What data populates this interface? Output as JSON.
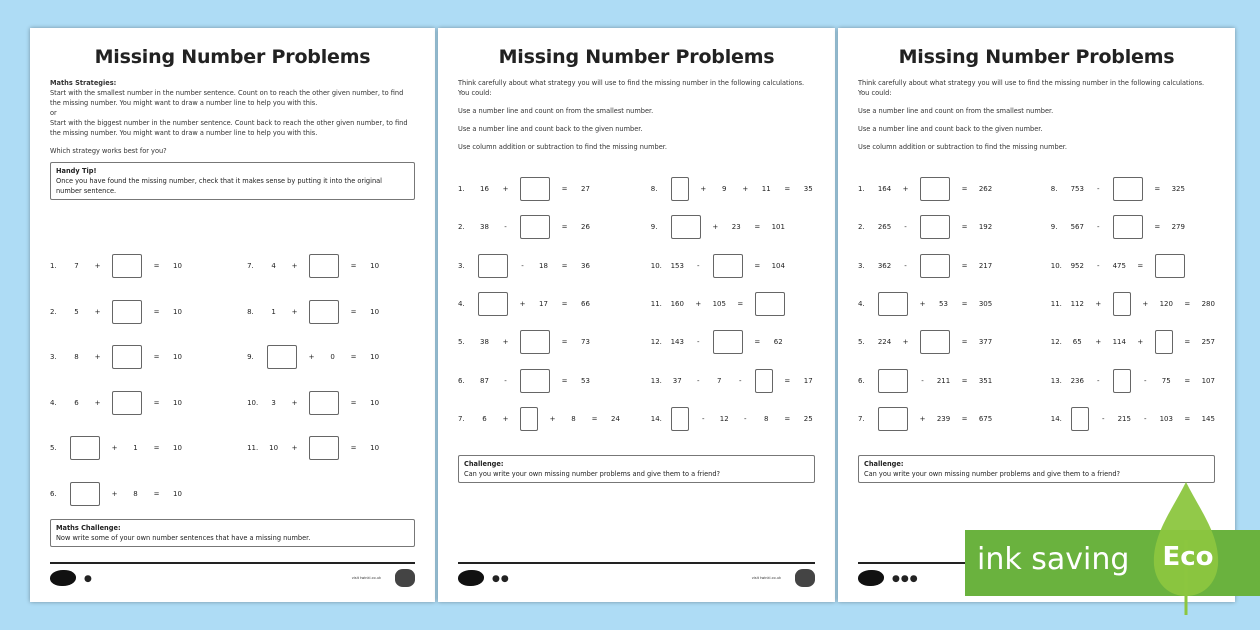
{
  "pages": [
    {
      "title": "Missing Number Problems",
      "strategies_heading": "Maths Strategies:",
      "strategy1": "Start with the smallest number in the number sentence. Count on to reach the other given number, to find the missing number. You might want to draw a number line to help you with this.",
      "or": "or",
      "strategy2": "Start with the biggest number in the number sentence. Count back to reach the other given number, to find the missing number. You might want to draw a number line to help you with this.",
      "question": "Which strategy works best for you?",
      "tip_heading": "Handy Tip!",
      "tip": "Once you have found the missing number, check that it makes sense by putting it into the original number sentence.",
      "problems": [
        [
          "1.",
          "7",
          "+",
          "[]",
          "=",
          "10"
        ],
        [
          "2.",
          "5",
          "+",
          "[]",
          "=",
          "10"
        ],
        [
          "3.",
          "8",
          "+",
          "[]",
          "=",
          "10"
        ],
        [
          "4.",
          "6",
          "+",
          "[]",
          "=",
          "10"
        ],
        [
          "5.",
          "[]",
          "+",
          "1",
          "=",
          "10"
        ],
        [
          "6.",
          "[]",
          "+",
          "8",
          "=",
          "10"
        ],
        [
          "7.",
          "4",
          "+",
          "[]",
          "=",
          "10"
        ],
        [
          "8.",
          "1",
          "+",
          "[]",
          "=",
          "10"
        ],
        [
          "9.",
          "[]",
          "+",
          "0",
          "=",
          "10"
        ],
        [
          "10.",
          "3",
          "+",
          "[]",
          "=",
          "10"
        ],
        [
          "11.",
          "10",
          "+",
          "[]",
          "=",
          "10"
        ]
      ],
      "challenge_heading": "Maths Challenge:",
      "challenge": "Now write some of your own number sentences that have a missing number.",
      "page_dots": "●",
      "footer_text": "visit twinkl.co.uk"
    },
    {
      "title": "Missing Number Problems",
      "intro": "Think carefully about what strategy you will use to find the missing number in the following calculations. You could:",
      "tips": [
        "Use a number line and count on from the smallest number.",
        "Use a number line and count back to the given number.",
        "Use column addition or subtraction to find the missing number."
      ],
      "problems": [
        [
          "1.",
          "16",
          "+",
          "[]",
          "=",
          "27"
        ],
        [
          "2.",
          "38",
          "-",
          "[]",
          "=",
          "26"
        ],
        [
          "3.",
          "[]",
          "-",
          "18",
          "=",
          "36"
        ],
        [
          "4.",
          "[]",
          "+",
          "17",
          "=",
          "66"
        ],
        [
          "5.",
          "38",
          "+",
          "[]",
          "=",
          "73"
        ],
        [
          "6.",
          "87",
          "-",
          "[]",
          "=",
          "53"
        ],
        [
          "7.",
          "6",
          "+",
          "[s]",
          "+",
          "8",
          "=",
          "24"
        ],
        [
          "8.",
          "[s]",
          "+",
          "9",
          "+",
          "11",
          "=",
          "35"
        ],
        [
          "9.",
          "[]",
          "+",
          "23",
          "=",
          "101"
        ],
        [
          "10.",
          "153",
          "-",
          "[]",
          "=",
          "104"
        ],
        [
          "11.",
          "160",
          "+",
          "105",
          "=",
          "[]"
        ],
        [
          "12.",
          "143",
          "-",
          "[]",
          "=",
          "62"
        ],
        [
          "13.",
          "37",
          "-",
          "7",
          "-",
          "[s]",
          "=",
          "17"
        ],
        [
          "14.",
          "[s]",
          "-",
          "12",
          "-",
          "8",
          "=",
          "25"
        ]
      ],
      "challenge_heading": "Challenge:",
      "challenge": "Can you write your own missing number problems and give them to a friend?",
      "page_dots": "●●",
      "footer_text": "visit twinkl.co.uk"
    },
    {
      "title": "Missing Number Problems",
      "intro": "Think carefully about what strategy you will use to find the missing number in the following calculations. You could:",
      "tips": [
        "Use a number line and count on from the smallest number.",
        "Use a number line and count back to the given number.",
        "Use column addition or subtraction to find the missing number."
      ],
      "problems": [
        [
          "1.",
          "164",
          "+",
          "[]",
          "=",
          "262"
        ],
        [
          "2.",
          "265",
          "-",
          "[]",
          "=",
          "192"
        ],
        [
          "3.",
          "362",
          "-",
          "[]",
          "=",
          "217"
        ],
        [
          "4.",
          "[]",
          "+",
          "53",
          "=",
          "305"
        ],
        [
          "5.",
          "224",
          "+",
          "[]",
          "=",
          "377"
        ],
        [
          "6.",
          "[]",
          "-",
          "211",
          "=",
          "351"
        ],
        [
          "7.",
          "[]",
          "+",
          "239",
          "=",
          "675"
        ],
        [
          "8.",
          "753",
          "-",
          "[]",
          "=",
          "325"
        ],
        [
          "9.",
          "567",
          "-",
          "[]",
          "=",
          "279"
        ],
        [
          "10.",
          "952",
          "-",
          "475",
          "=",
          "[]"
        ],
        [
          "11.",
          "112",
          "+",
          "[s]",
          "+",
          "120",
          "=",
          "280"
        ],
        [
          "12.",
          "65",
          "+",
          "114",
          "+",
          "[s]",
          "=",
          "257"
        ],
        [
          "13.",
          "236",
          "-",
          "[s]",
          "-",
          "75",
          "=",
          "107"
        ],
        [
          "14.",
          "[s]",
          "-",
          "215",
          "-",
          "103",
          "=",
          "145"
        ]
      ],
      "challenge_heading": "Challenge:",
      "challenge": "Can you write your own missing number problems and give them to a friend?",
      "page_dots": "●●●"
    }
  ],
  "badge": {
    "text": "ink saving",
    "eco": "Eco",
    "color": "#6ab23e"
  }
}
